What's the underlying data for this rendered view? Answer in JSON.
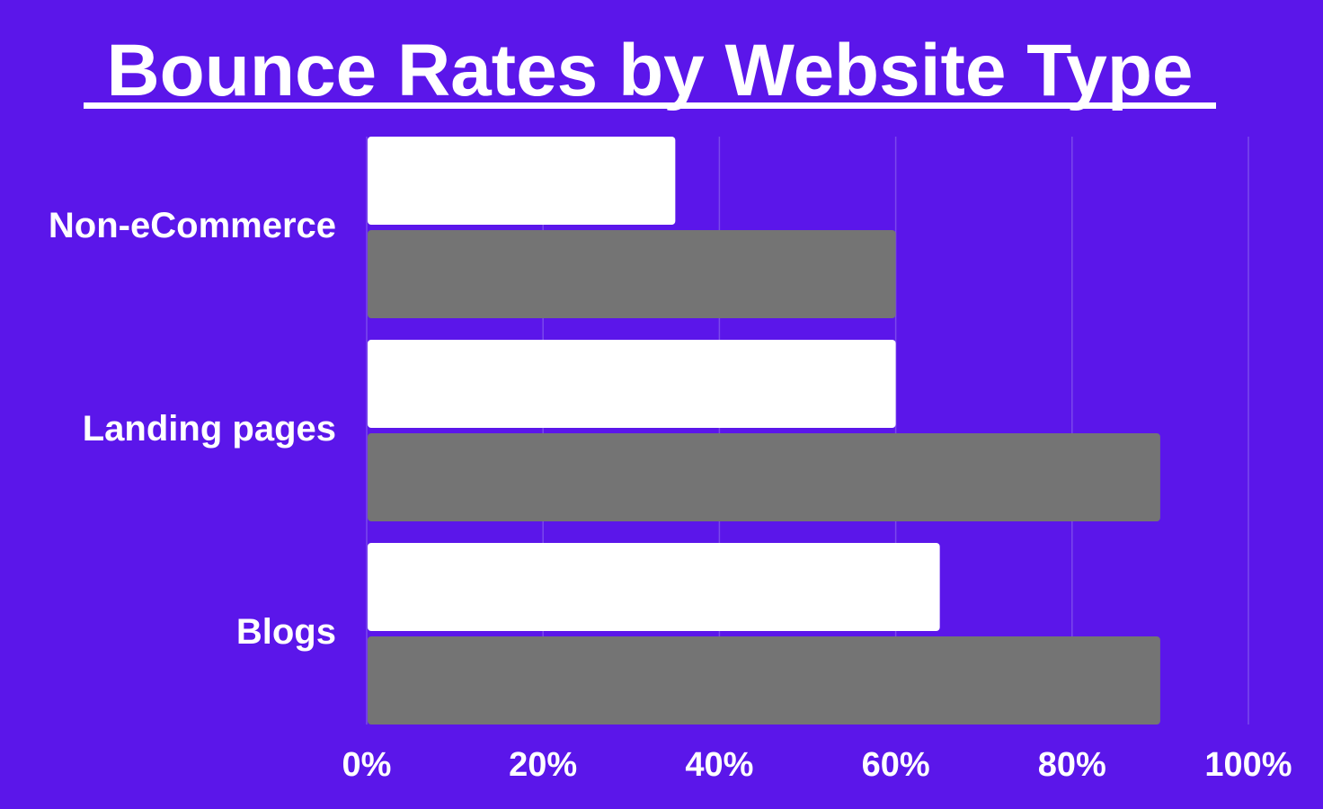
{
  "colors": {
    "background": "#5B16EA",
    "series_white": "#FFFFFF",
    "series_gray": "#747474",
    "grid": "#7A48EC",
    "text": "#FFFFFF"
  },
  "chart_data": {
    "type": "bar",
    "orientation": "horizontal",
    "title": "Bounce Rates by Website Type",
    "title_underlined": true,
    "xlabel": "",
    "ylabel": "",
    "categories": [
      "Non-eCommerce",
      "Landing pages",
      "Blogs"
    ],
    "series": [
      {
        "values": [
          35,
          60,
          65
        ],
        "color": "#FFFFFF"
      },
      {
        "values": [
          60,
          90,
          90
        ],
        "color": "#747474"
      }
    ],
    "xlim": [
      0,
      100
    ],
    "xticks": [
      0,
      20,
      40,
      60,
      80,
      100
    ],
    "xtick_labels": [
      "0%",
      "20%",
      "40%",
      "60%",
      "80%",
      "100%"
    ],
    "grid": "vertical",
    "legend": "none"
  }
}
